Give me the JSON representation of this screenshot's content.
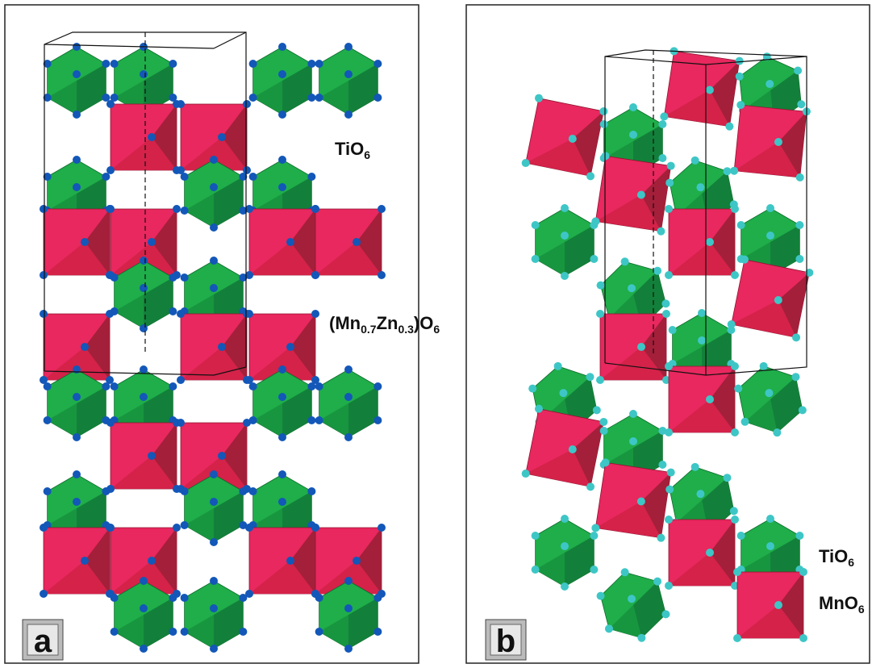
{
  "panels": [
    {
      "label": "a",
      "annotations": [
        {
          "parts": [
            {
              "text": "TiO"
            },
            {
              "sub": "6"
            }
          ]
        },
        {
          "parts": [
            {
              "text": "(Mn"
            },
            {
              "sub": "0.7"
            },
            {
              "text": "Zn"
            },
            {
              "sub": "0.3"
            },
            {
              "text": ")O"
            },
            {
              "sub": "6"
            }
          ]
        }
      ]
    },
    {
      "label": "b",
      "annotations": [
        {
          "parts": [
            {
              "text": "TiO"
            },
            {
              "sub": "6"
            }
          ]
        },
        {
          "parts": [
            {
              "text": "MnO"
            },
            {
              "sub": "6"
            }
          ]
        }
      ]
    }
  ]
}
